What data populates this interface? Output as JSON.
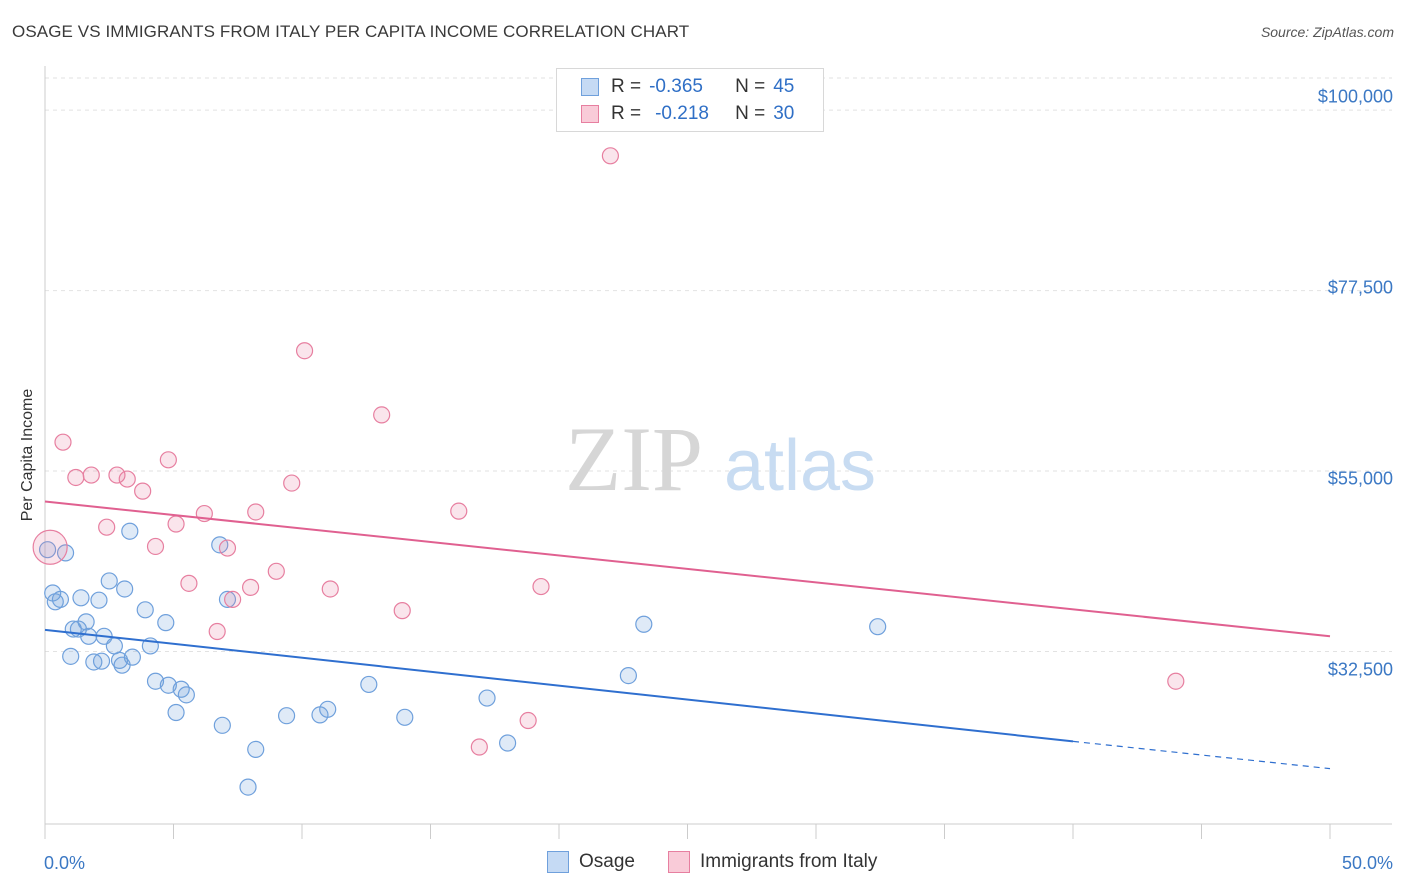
{
  "title": "OSAGE VS IMMIGRANTS FROM ITALY PER CAPITA INCOME CORRELATION CHART",
  "source": "Source: ZipAtlas.com",
  "watermark": {
    "zip": "ZIP",
    "atlas": "atlas"
  },
  "legend_top": [
    {
      "r_label": "R =",
      "r_value": "-0.365",
      "n_label": "N =",
      "n_value": "45",
      "color": "#6fa0dc"
    },
    {
      "r_label": "R =",
      "r_value": "-0.218",
      "n_label": "N =",
      "n_value": "30",
      "color": "#e77fa0"
    }
  ],
  "chart_data": {
    "type": "scatter",
    "title": "OSAGE VS IMMIGRANTS FROM ITALY PER CAPITA INCOME CORRELATION CHART",
    "xlabel": "",
    "ylabel": "Per Capita Income",
    "xlim": [
      0,
      50
    ],
    "ylim": [
      11000,
      104000
    ],
    "x_tick_labels": [
      "0.0%",
      "50.0%"
    ],
    "y_ticks": [
      32500,
      55000,
      77500,
      100000
    ],
    "y_tick_labels": [
      "$32,500",
      "$55,000",
      "$77,500",
      "$100,000"
    ],
    "grid": true,
    "series": [
      {
        "name": "Osage",
        "color": "#6fa0dc",
        "r": -0.365,
        "n": 45,
        "trend": {
          "x0": 0,
          "y0": 35200,
          "x1": 40,
          "y1": 21300,
          "dash_to_x": 50,
          "dash_to_y": 17900
        },
        "points": [
          [
            0.1,
            45200
          ],
          [
            0.8,
            44800
          ],
          [
            0.3,
            39800
          ],
          [
            0.4,
            38700
          ],
          [
            0.6,
            39000
          ],
          [
            1.0,
            31900
          ],
          [
            1.1,
            35300
          ],
          [
            1.3,
            35300
          ],
          [
            1.4,
            39200
          ],
          [
            1.6,
            36200
          ],
          [
            1.7,
            34400
          ],
          [
            1.9,
            31200
          ],
          [
            2.1,
            38900
          ],
          [
            2.2,
            31300
          ],
          [
            2.3,
            34400
          ],
          [
            2.5,
            41300
          ],
          [
            2.7,
            33200
          ],
          [
            2.9,
            31400
          ],
          [
            3.0,
            30800
          ],
          [
            3.1,
            40300
          ],
          [
            3.4,
            31800
          ],
          [
            3.3,
            47500
          ],
          [
            3.9,
            37700
          ],
          [
            4.1,
            33200
          ],
          [
            4.3,
            28800
          ],
          [
            4.7,
            36100
          ],
          [
            4.8,
            28300
          ],
          [
            5.1,
            24900
          ],
          [
            5.3,
            27800
          ],
          [
            5.5,
            27100
          ],
          [
            6.8,
            45800
          ],
          [
            6.9,
            23300
          ],
          [
            7.1,
            39000
          ],
          [
            8.2,
            20300
          ],
          [
            7.9,
            15600
          ],
          [
            9.4,
            24500
          ],
          [
            10.7,
            24600
          ],
          [
            11.0,
            25300
          ],
          [
            12.6,
            28400
          ],
          [
            14.0,
            24300
          ],
          [
            17.2,
            26700
          ],
          [
            18.0,
            21100
          ],
          [
            22.7,
            29500
          ],
          [
            23.3,
            35900
          ],
          [
            32.4,
            35600
          ]
        ]
      },
      {
        "name": "Immigrants from Italy",
        "color": "#e77fa0",
        "r": -0.218,
        "n": 30,
        "trend": {
          "x0": 0,
          "y0": 51200,
          "x1": 50,
          "y1": 34400
        },
        "points": [
          [
            0.2,
            45500
          ],
          [
            0.7,
            58600
          ],
          [
            1.2,
            54200
          ],
          [
            1.8,
            54500
          ],
          [
            2.4,
            48000
          ],
          [
            2.8,
            54500
          ],
          [
            3.2,
            54000
          ],
          [
            3.8,
            52500
          ],
          [
            4.3,
            45600
          ],
          [
            4.8,
            56400
          ],
          [
            5.1,
            48400
          ],
          [
            5.6,
            41000
          ],
          [
            6.2,
            49700
          ],
          [
            6.7,
            35000
          ],
          [
            7.1,
            45400
          ],
          [
            7.3,
            39000
          ],
          [
            8.0,
            40500
          ],
          [
            8.2,
            49900
          ],
          [
            9.0,
            42500
          ],
          [
            9.6,
            53500
          ],
          [
            10.1,
            70000
          ],
          [
            11.1,
            40300
          ],
          [
            13.1,
            62000
          ],
          [
            13.9,
            37600
          ],
          [
            16.1,
            50000
          ],
          [
            16.9,
            20600
          ],
          [
            18.8,
            23900
          ],
          [
            19.3,
            40600
          ],
          [
            22.0,
            94300
          ],
          [
            44.0,
            28800
          ]
        ]
      }
    ]
  },
  "legend_bottom": [
    {
      "label": "Osage",
      "color": "#6fa0dc"
    },
    {
      "label": "Immigrants from Italy",
      "color": "#e77fa0"
    }
  ]
}
